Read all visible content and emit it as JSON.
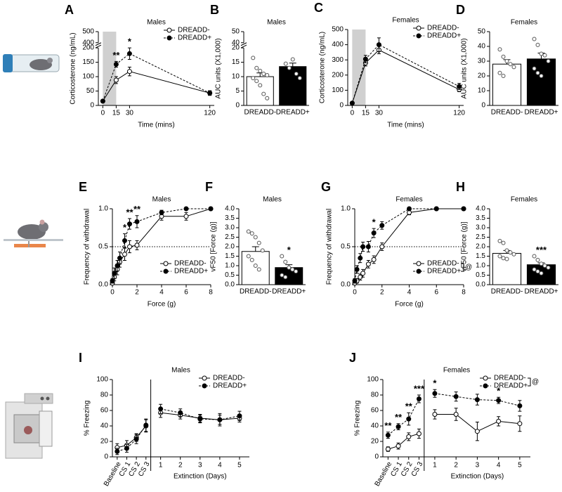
{
  "chart_data": [
    {
      "panel": "A",
      "type": "line",
      "title": "Males",
      "x_label": "Time (mins)",
      "y_label": "Corticosterone (ng/mL)",
      "x": [
        0,
        15,
        30,
        120
      ],
      "xlim": [
        -5,
        125
      ],
      "xticks": [
        0,
        15,
        30,
        120
      ],
      "ylim": [
        0,
        500
      ],
      "y_break": [
        200,
        400
      ],
      "yticks": [
        0,
        50,
        100,
        150,
        200,
        400,
        500
      ],
      "shade": [
        0,
        15
      ],
      "legend": "upper right",
      "series": [
        {
          "name": "DREADD-",
          "color": "#ffffff",
          "line": "solid",
          "values": [
            15,
            88,
            118,
            43
          ],
          "errors": [
            3,
            12,
            15,
            8
          ]
        },
        {
          "name": "DREADD+",
          "color": "#000000",
          "line": "dashed",
          "values": [
            15,
            143,
            180,
            43
          ],
          "errors": [
            3,
            10,
            20,
            8
          ]
        }
      ],
      "annotations": [
        {
          "text": "**",
          "at": 15
        },
        {
          "text": "*",
          "at": 30
        }
      ]
    },
    {
      "panel": "B",
      "type": "bar",
      "title": "Males",
      "y_label": "AUC units (X1,000)",
      "categories": [
        "DREADD-",
        "DREADD+"
      ],
      "values": [
        10,
        13.5
      ],
      "errors": [
        1.3,
        1.2
      ],
      "colors": [
        "#ffffff",
        "#000000"
      ],
      "points": [
        [
          16.5,
          13,
          12,
          11,
          10.5,
          9.5,
          8.5,
          7,
          4,
          2.5
        ],
        [
          14.5,
          13,
          16,
          11,
          9.5
        ]
      ],
      "ylim": [
        0,
        50
      ],
      "y_break": [
        20,
        40
      ],
      "yticks": [
        0,
        5,
        10,
        15,
        20,
        40,
        50
      ]
    },
    {
      "panel": "C",
      "type": "line",
      "title": "Females",
      "x_label": "Time (mins)",
      "y_label": "Corticosterone (ng/mL)",
      "x": [
        0,
        15,
        30,
        120
      ],
      "xlim": [
        -5,
        125
      ],
      "xticks": [
        0,
        15,
        30,
        120
      ],
      "ylim": [
        0,
        500
      ],
      "yticks": [
        0,
        100,
        200,
        300,
        400,
        500
      ],
      "shade": [
        0,
        15
      ],
      "legend": "upper right",
      "series": [
        {
          "name": "DREADD-",
          "color": "#ffffff",
          "line": "solid",
          "values": [
            15,
            280,
            365,
            105
          ],
          "errors": [
            3,
            20,
            25,
            15
          ]
        },
        {
          "name": "DREADD+",
          "color": "#000000",
          "line": "dashed",
          "values": [
            15,
            305,
            400,
            125
          ],
          "errors": [
            3,
            25,
            45,
            20
          ]
        }
      ]
    },
    {
      "panel": "D",
      "type": "bar",
      "title": "Females",
      "y_label": "AUC units (X1,000)",
      "categories": [
        "DREADD-",
        "DREADD+"
      ],
      "values": [
        28,
        31.5
      ],
      "errors": [
        3,
        4
      ],
      "colors": [
        "#ffffff",
        "#000000"
      ],
      "points": [
        [
          38,
          33,
          30,
          28,
          26,
          22,
          20
        ],
        [
          45,
          41,
          35,
          34,
          30,
          25,
          22,
          20
        ]
      ],
      "ylim": [
        0,
        50
      ],
      "yticks": [
        0,
        10,
        20,
        30,
        40,
        50
      ]
    },
    {
      "panel": "E",
      "type": "line",
      "title": "Males",
      "x_label": "Force (g)",
      "y_label": "Frequency of withdrawal",
      "x": [
        0,
        0.16,
        0.4,
        0.6,
        1,
        1.4,
        2,
        4,
        6,
        8
      ],
      "xlim": [
        0,
        8
      ],
      "xticks": [
        0,
        2,
        4,
        6,
        8
      ],
      "ylim": [
        0,
        1
      ],
      "yticks": [
        {
          "value": 0,
          "label": "0.0"
        },
        0.5,
        {
          "value": 1,
          "label": "1.0"
        }
      ],
      "hline": 0.5,
      "legend": "lower right",
      "series": [
        {
          "name": "DREADD-",
          "color": "#ffffff",
          "line": "solid",
          "values": [
            0.02,
            0.1,
            0.2,
            0.3,
            0.4,
            0.5,
            0.52,
            0.9,
            0.9,
            1.0
          ],
          "errors": [
            0.02,
            0.05,
            0.07,
            0.07,
            0.08,
            0.08,
            0.06,
            0.05,
            0.05,
            0
          ]
        },
        {
          "name": "DREADD+",
          "color": "#000000",
          "line": "dashed",
          "values": [
            0.05,
            0.15,
            0.25,
            0.35,
            0.58,
            0.8,
            0.83,
            0.95,
            1.0,
            1.0
          ],
          "errors": [
            0.03,
            0.07,
            0.07,
            0.08,
            0.09,
            0.07,
            0.08,
            0.03,
            0,
            0
          ]
        }
      ],
      "annotations": [
        {
          "text": "*",
          "at": 1
        },
        {
          "text": "**",
          "at": 1.4
        },
        {
          "text": "**",
          "at": 2
        }
      ]
    },
    {
      "panel": "F",
      "type": "bar",
      "title": "Males",
      "y_label": "vF50 [Force (g)]",
      "categories": [
        "DREADD-",
        "DREADD+"
      ],
      "values": [
        1.75,
        0.9
      ],
      "errors": [
        0.25,
        0.15
      ],
      "colors": [
        "#ffffff",
        "#000000"
      ],
      "points": [
        [
          2.8,
          2.7,
          2.5,
          2.2,
          1.8,
          1.5,
          1.3,
          1.0,
          0.8
        ],
        [
          1.5,
          1.2,
          0.9,
          0.8,
          0.7,
          0.5,
          0.4
        ]
      ],
      "ylim": [
        0,
        4
      ],
      "yticks": [
        {
          "value": 0,
          "label": "0.0"
        },
        0.5,
        {
          "value": 1,
          "label": "1.0"
        },
        1.5,
        {
          "value": 2,
          "label": "2.0"
        },
        2.5,
        {
          "value": 3,
          "label": "3.0"
        },
        3.5,
        {
          "value": 4,
          "label": "4.0"
        }
      ],
      "annotations": [
        {
          "text": "*",
          "at": "DREADD+"
        }
      ]
    },
    {
      "panel": "G",
      "type": "line",
      "title": "Females",
      "x_label": "Force (g)",
      "y_label": "Frequency of withdrawal",
      "x": [
        0,
        0.16,
        0.4,
        0.6,
        1,
        1.4,
        2,
        4,
        6,
        8
      ],
      "xlim": [
        0,
        8
      ],
      "xticks": [
        0,
        2,
        4,
        6,
        8
      ],
      "ylim": [
        0,
        1
      ],
      "yticks": [
        {
          "value": 0,
          "label": "0.0"
        },
        0.5,
        {
          "value": 1,
          "label": "1.0"
        }
      ],
      "hline": 0.5,
      "legend": "lower right",
      "legend_note": "@",
      "series": [
        {
          "name": "DREADD-",
          "color": "#ffffff",
          "line": "solid",
          "values": [
            0.02,
            0.05,
            0.1,
            0.15,
            0.27,
            0.33,
            0.5,
            0.95,
            1.0,
            1.0
          ],
          "errors": [
            0.02,
            0.03,
            0.04,
            0.05,
            0.05,
            0.05,
            0.05,
            0.03,
            0,
            0
          ]
        },
        {
          "name": "DREADD+",
          "color": "#000000",
          "line": "dashed",
          "values": [
            0.05,
            0.2,
            0.35,
            0.5,
            0.5,
            0.68,
            0.78,
            1.0,
            1.0,
            1.0
          ],
          "errors": [
            0.03,
            0.05,
            0.06,
            0.06,
            0.07,
            0.06,
            0.05,
            0,
            0,
            0
          ]
        }
      ],
      "annotations": [
        {
          "text": "*",
          "at": 1.4
        }
      ]
    },
    {
      "panel": "H",
      "type": "bar",
      "title": "Females",
      "y_label": "vF50 [Force (g)]",
      "categories": [
        "DREADD-",
        "DREADD+"
      ],
      "values": [
        1.65,
        1.05
      ],
      "errors": [
        0.15,
        0.1
      ],
      "colors": [
        "#ffffff",
        "#000000"
      ],
      "points": [
        [
          2.3,
          2.2,
          1.8,
          1.7,
          1.6,
          1.5,
          1.4,
          1.35
        ],
        [
          1.5,
          1.3,
          1.1,
          1.0,
          0.9,
          0.8,
          0.7,
          0.6
        ]
      ],
      "ylim": [
        0,
        4
      ],
      "yticks": [
        {
          "value": 0,
          "label": "0.0"
        },
        0.5,
        {
          "value": 1,
          "label": "1.0"
        },
        1.5,
        {
          "value": 2,
          "label": "2.0"
        },
        2.5,
        {
          "value": 3,
          "label": "3.0"
        },
        3.5,
        {
          "value": 4,
          "label": "4.0"
        }
      ],
      "annotations": [
        {
          "text": "***",
          "at": "DREADD+"
        }
      ]
    },
    {
      "panel": "I",
      "type": "line",
      "title": "Males",
      "x_label": "Extinction (Days)",
      "y_label": "% Freezing",
      "categories": [
        "Baseline",
        "CS 1",
        "CS 2",
        "CS 3",
        "1",
        "2",
        "3",
        "4",
        "5"
      ],
      "split": 4,
      "ylim": [
        0,
        100
      ],
      "yticks": [
        0,
        20,
        40,
        60,
        80,
        100
      ],
      "legend": "upper right",
      "series": [
        {
          "name": "DREADD-",
          "color": "#ffffff",
          "line": "solid",
          "values": [
            12,
            15,
            25,
            40,
            57,
            54,
            50,
            48,
            50
          ],
          "errors": [
            5,
            6,
            5,
            8,
            6,
            5,
            5,
            8,
            5
          ]
        },
        {
          "name": "DREADD+",
          "color": "#000000",
          "line": "dashed",
          "values": [
            7,
            11,
            23,
            41,
            62,
            57,
            49,
            48,
            53
          ],
          "errors": [
            4,
            5,
            6,
            8,
            6,
            5,
            5,
            6,
            6
          ]
        }
      ]
    },
    {
      "panel": "J",
      "type": "line",
      "title": "Females",
      "x_label": "Extinction (Days)",
      "y_label": "% Freezing",
      "categories": [
        "Baseline",
        "CS 1",
        "CS 2",
        "CS 3",
        "1",
        "2",
        "3",
        "4",
        "5"
      ],
      "split": 4,
      "ylim": [
        0,
        100
      ],
      "yticks": [
        0,
        20,
        40,
        60,
        80,
        100
      ],
      "legend": "upper right",
      "legend_note": "@",
      "series": [
        {
          "name": "DREADD-",
          "color": "#ffffff",
          "line": "solid",
          "values": [
            10,
            14,
            26,
            30,
            55,
            55,
            33,
            46,
            43
          ],
          "errors": [
            3,
            4,
            5,
            6,
            6,
            8,
            12,
            6,
            10
          ]
        },
        {
          "name": "DREADD+",
          "color": "#000000",
          "line": "dashed",
          "values": [
            28,
            39,
            49,
            75,
            82,
            78,
            74,
            73,
            66
          ],
          "errors": [
            4,
            4,
            8,
            5,
            5,
            6,
            7,
            4,
            7
          ]
        }
      ],
      "annotations": [
        {
          "text": "**",
          "at": "Baseline"
        },
        {
          "text": "**",
          "at": "CS 1"
        },
        {
          "text": "**",
          "at": "CS 2"
        },
        {
          "text": "***",
          "at": "CS 3"
        },
        {
          "text": "*",
          "at": "1"
        },
        {
          "text": "*",
          "at": "4"
        }
      ]
    }
  ]
}
